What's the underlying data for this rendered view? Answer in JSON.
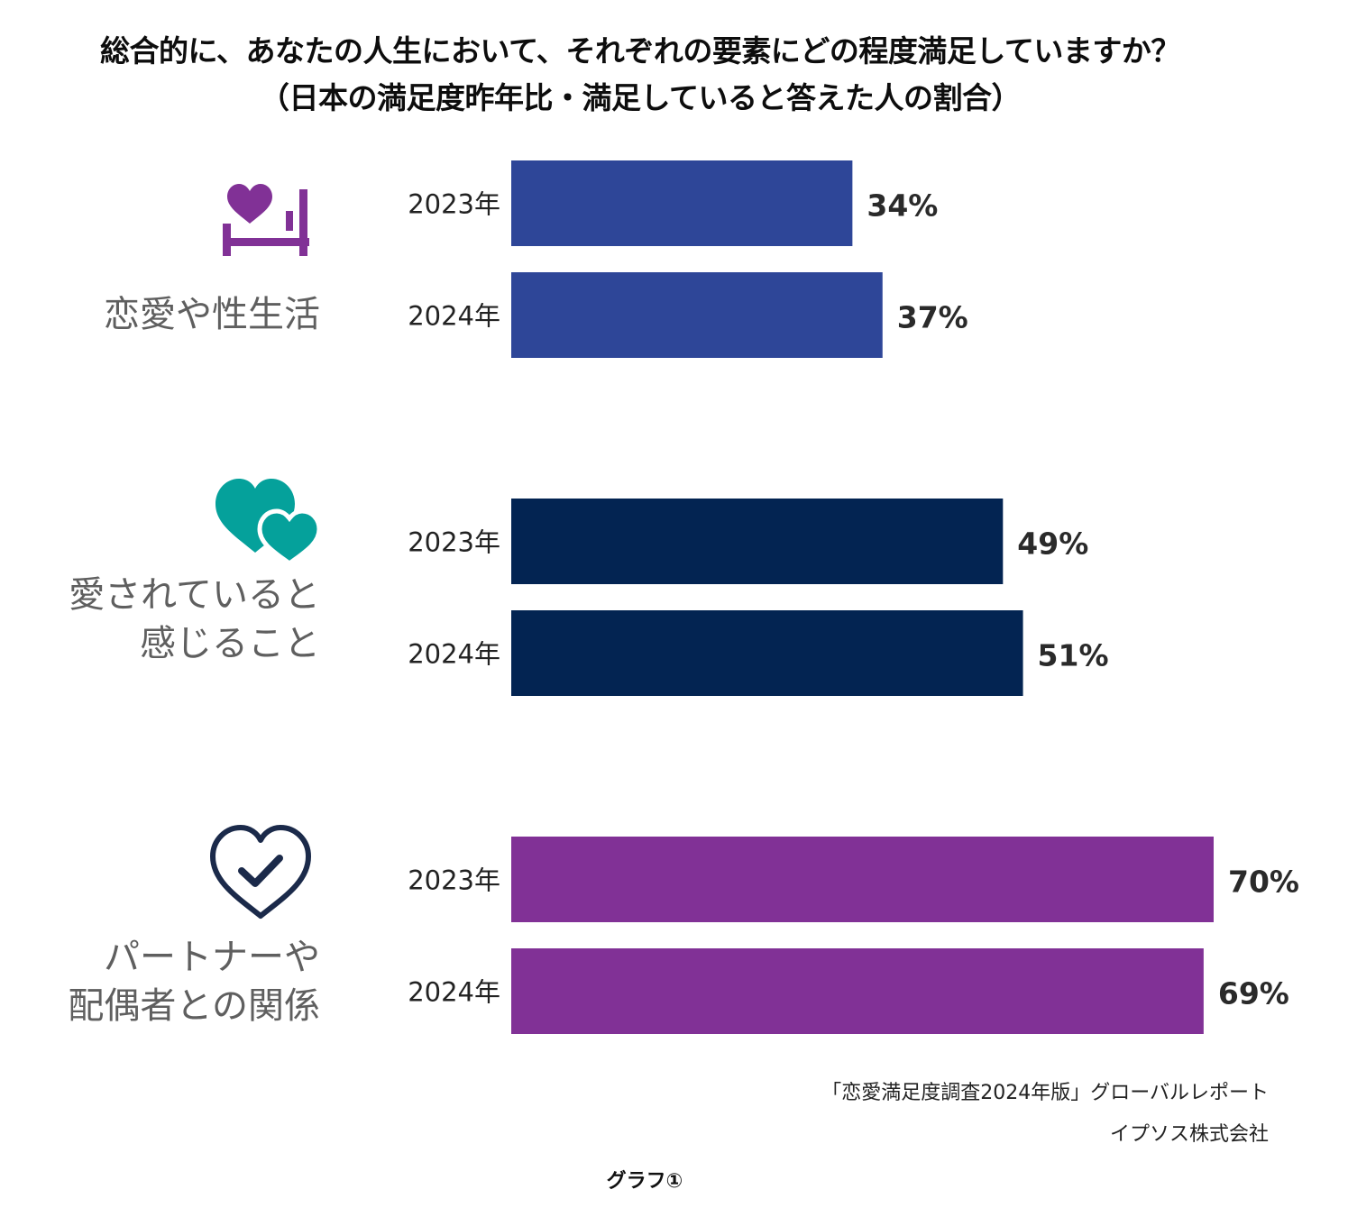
{
  "chart_data": {
    "type": "bar",
    "orientation": "horizontal",
    "title": "総合的に、あなたの人生において、それぞれの要素にどの程度満足していますか？",
    "subtitle": "（日本の満足度昨年比・満足していると答えた人の割合）",
    "groups": [
      {
        "label_lines": [
          "恋愛や性生活"
        ],
        "icon": "heart-bed-icon",
        "color": "#2e4698",
        "bars": [
          {
            "year": "2023年",
            "value": 34,
            "label": "34%"
          },
          {
            "year": "2024年",
            "value": 37,
            "label": "37%"
          }
        ]
      },
      {
        "label_lines": [
          "愛されていると",
          "感じること"
        ],
        "icon": "two-hearts-icon",
        "color": "#032452",
        "bars": [
          {
            "year": "2023年",
            "value": 49,
            "label": "49%"
          },
          {
            "year": "2024年",
            "value": 51,
            "label": "51%"
          }
        ]
      },
      {
        "label_lines": [
          "パートナーや",
          "配偶者との関係"
        ],
        "icon": "heart-check-icon",
        "color": "#813196",
        "bars": [
          {
            "year": "2023年",
            "value": 70,
            "label": "70%"
          },
          {
            "year": "2024年",
            "value": 69,
            "label": "69%"
          }
        ]
      }
    ],
    "xlim": [
      0,
      70
    ],
    "grid": false,
    "legend": "none"
  },
  "source_lines": [
    "「恋愛満足度調査2024年版」グローバルレポート",
    "イプソス株式会社"
  ],
  "caption": "グラフ①"
}
